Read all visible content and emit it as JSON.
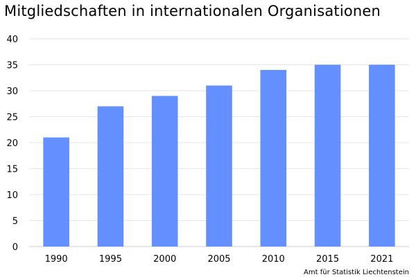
{
  "title": "Mitgliedschaften in internationalen Organisationen",
  "source": "Amt für Statistik Liechtenstein",
  "chart_data": {
    "type": "bar",
    "title": "Mitgliedschaften in internationalen Organisationen",
    "xlabel": "",
    "ylabel": "",
    "categories": [
      "1990",
      "1995",
      "2000",
      "2005",
      "2010",
      "2015",
      "2021"
    ],
    "values": [
      21,
      27,
      29,
      31,
      34,
      35,
      35
    ],
    "ylim": [
      0,
      40
    ],
    "yticks": [
      0,
      5,
      10,
      15,
      20,
      25,
      30,
      35,
      40
    ],
    "grid": true,
    "legend": "none",
    "bar_color": "#648fff",
    "gridline_color": "#e6e6e6"
  }
}
